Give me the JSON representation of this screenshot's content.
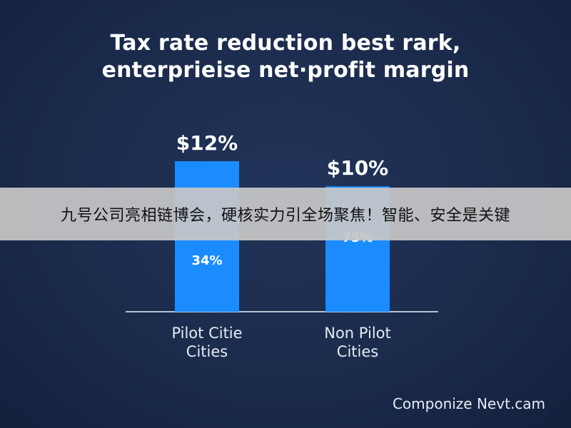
{
  "chart_data": {
    "type": "bar",
    "title": [
      "Tax rate reduction best rark,",
      "enterprieise net·profit margin"
    ],
    "categories": [
      [
        "Pilot Citie",
        "Cities"
      ],
      [
        "Non Pilot",
        "Cities"
      ]
    ],
    "values": [
      12,
      10
    ],
    "value_labels": [
      "$12%",
      "$10%"
    ],
    "inner_labels": [
      "34%",
      "75%"
    ],
    "xlabel": "",
    "ylabel": "",
    "grid": false,
    "bar_color": "#1a8cff",
    "baseline_color": "#b8c2d6"
  },
  "banner": {
    "text": "九号公司亮相链博会，硬核实力引全场聚焦！智能、安全是关键"
  },
  "footer": {
    "brand": "Componize Nevt.cam"
  },
  "colors": {
    "background": "#1a2a4a",
    "bar": "#1a8cff",
    "text": "#ffffff"
  }
}
